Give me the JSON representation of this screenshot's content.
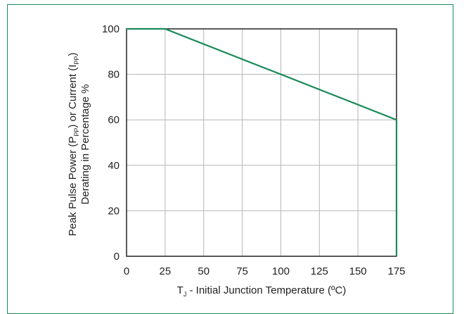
{
  "chart_data": {
    "type": "line",
    "title": "",
    "xlabel_main": "T",
    "xlabel_sub": "J",
    "xlabel_rest": " - Initial Junction Temperature (ºC)",
    "ylabel_line1_a": "Peak Pulse Power (P",
    "ylabel_line1_sub1": "PP",
    "ylabel_line1_b": ") or Current (I",
    "ylabel_line1_sub2": "PP",
    "ylabel_line1_c": ")",
    "ylabel_line2": "Derating in Percentage %",
    "xlim": [
      0,
      175
    ],
    "ylim": [
      0,
      100
    ],
    "xticks": [
      0,
      25,
      50,
      75,
      100,
      125,
      150,
      175
    ],
    "yticks": [
      0,
      20,
      40,
      60,
      80,
      100
    ],
    "grid": true,
    "line_color": "#1a8a5a",
    "series": [
      {
        "x": [
          0,
          25,
          175,
          175
        ],
        "y": [
          100,
          100,
          60,
          0
        ]
      }
    ]
  }
}
